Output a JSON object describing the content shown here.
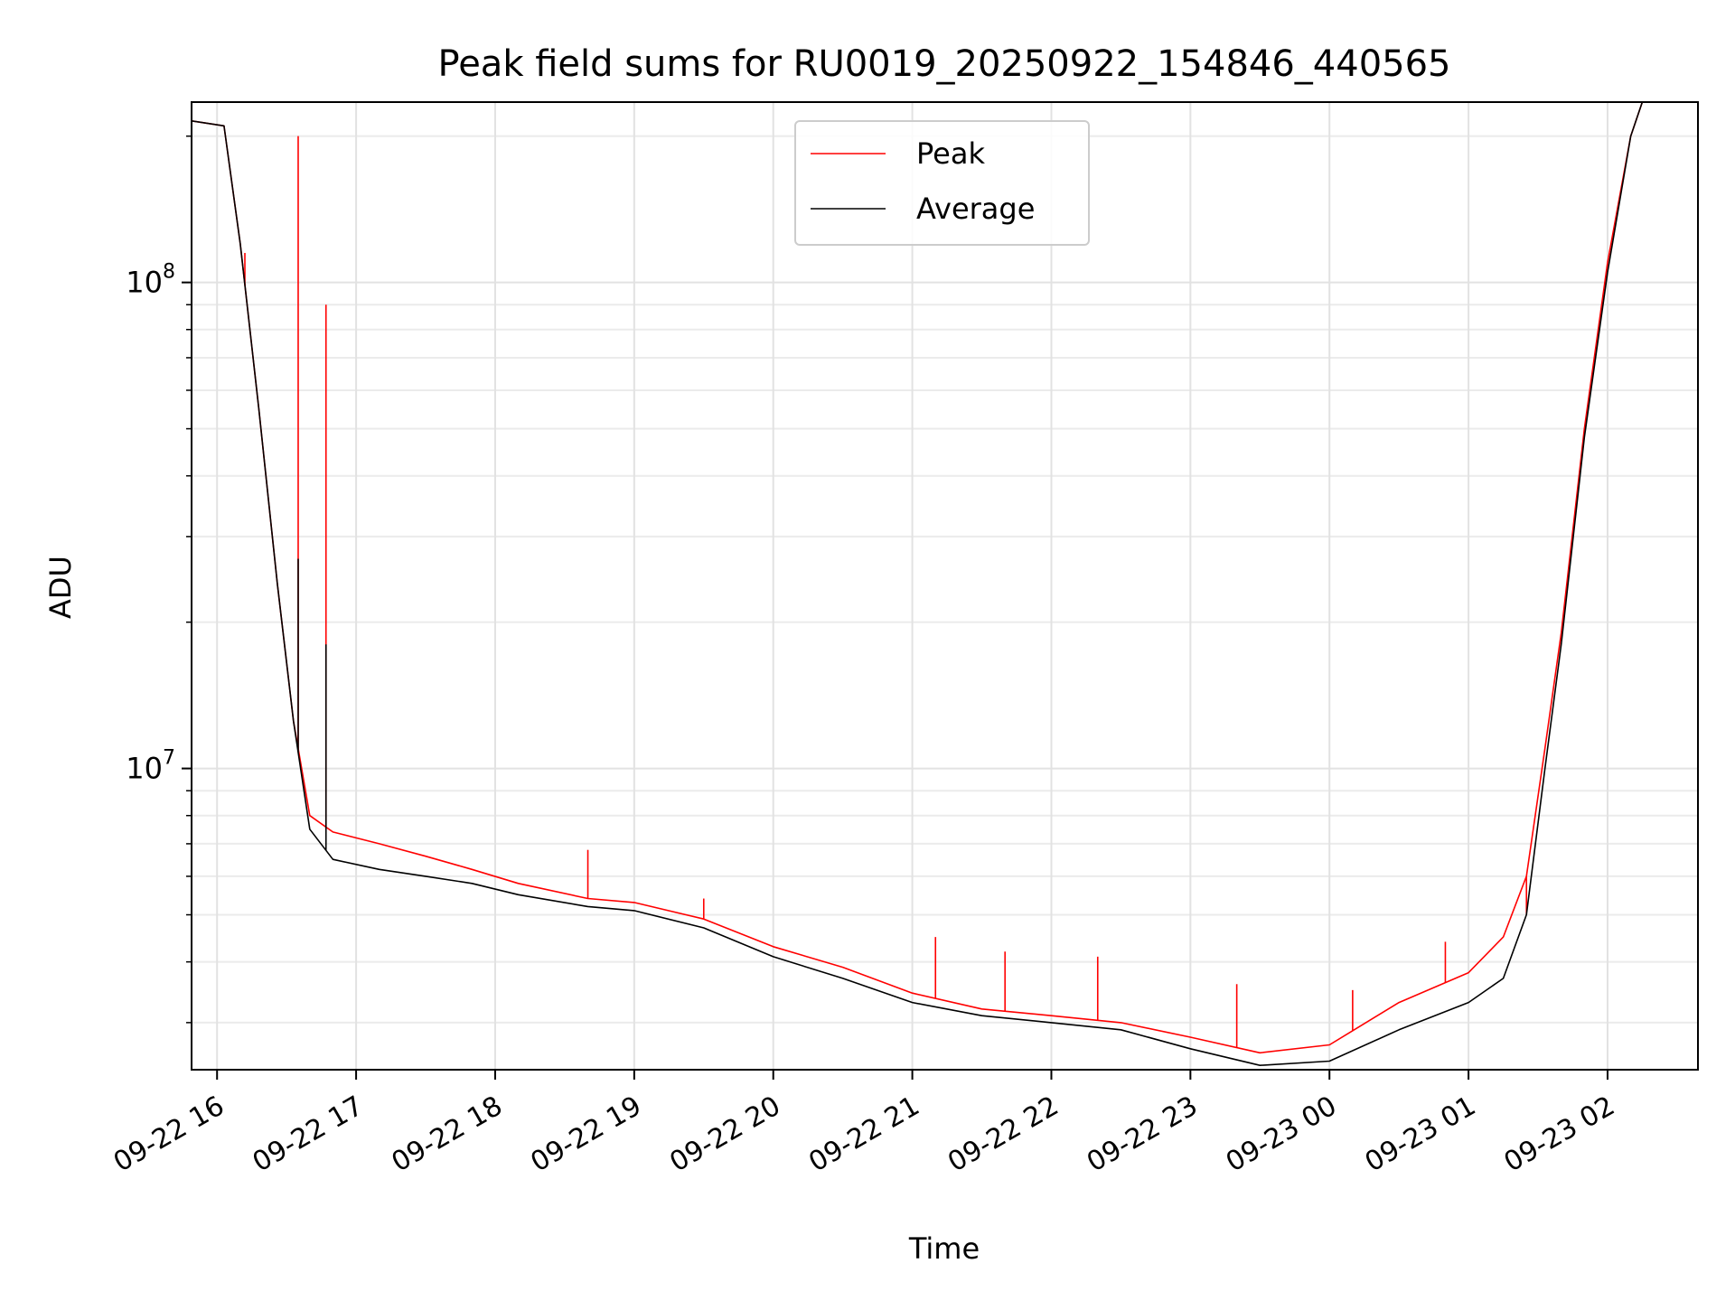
{
  "chart_data": {
    "type": "line",
    "title": "Peak field sums for RU0019_20250922_154846_440565",
    "xlabel": "Time",
    "ylabel": "ADU",
    "x_type": "time",
    "xlim": [
      "2025-09-22 15:49",
      "2025-09-23 02:39"
    ],
    "ylim": [
      2400000.0,
      235000000.0
    ],
    "y_scale": "log",
    "grid": true,
    "grid_minor": true,
    "legend": "top-center",
    "x_ticks": [
      {
        "t": "2025-09-22 16:00",
        "label": "09-22 16"
      },
      {
        "t": "2025-09-22 17:00",
        "label": "09-22 17"
      },
      {
        "t": "2025-09-22 18:00",
        "label": "09-22 18"
      },
      {
        "t": "2025-09-22 19:00",
        "label": "09-22 19"
      },
      {
        "t": "2025-09-22 20:00",
        "label": "09-22 20"
      },
      {
        "t": "2025-09-22 21:00",
        "label": "09-22 21"
      },
      {
        "t": "2025-09-22 22:00",
        "label": "09-22 22"
      },
      {
        "t": "2025-09-22 23:00",
        "label": "09-22 23"
      },
      {
        "t": "2025-09-23 00:00",
        "label": "09-23 00"
      },
      {
        "t": "2025-09-23 01:00",
        "label": "09-23 01"
      },
      {
        "t": "2025-09-23 02:00",
        "label": "09-23 02"
      }
    ],
    "y_ticks": [
      {
        "v": 10000000,
        "base": "10",
        "exp": "7"
      },
      {
        "v": 100000000,
        "base": "10",
        "exp": "8"
      }
    ],
    "series": [
      {
        "name": "Peak",
        "color": "#ff0000",
        "points": [
          [
            "2025-09-22 15:49",
            215000000.0
          ],
          [
            "2025-09-22 16:03",
            210000000.0
          ],
          [
            "2025-09-22 16:10",
            120000000.0
          ],
          [
            "2025-09-22 16:18",
            55000000.0
          ],
          [
            "2025-09-22 16:26",
            24000000.0
          ],
          [
            "2025-09-22 16:33",
            12500000.0
          ],
          [
            "2025-09-22 16:40",
            8000000.0
          ],
          [
            "2025-09-22 16:50",
            7400000.0
          ],
          [
            "2025-09-22 17:10",
            7000000.0
          ],
          [
            "2025-09-22 17:30",
            6600000.0
          ],
          [
            "2025-09-22 17:50",
            6200000.0
          ],
          [
            "2025-09-22 18:10",
            5800000.0
          ],
          [
            "2025-09-22 18:40",
            5400000.0
          ],
          [
            "2025-09-22 19:00",
            5300000.0
          ],
          [
            "2025-09-22 19:30",
            4900000.0
          ],
          [
            "2025-09-22 20:00",
            4300000.0
          ],
          [
            "2025-09-22 20:30",
            3900000.0
          ],
          [
            "2025-09-22 21:00",
            3450000.0
          ],
          [
            "2025-09-22 21:30",
            3200000.0
          ],
          [
            "2025-09-22 22:00",
            3100000.0
          ],
          [
            "2025-09-22 22:30",
            3000000.0
          ],
          [
            "2025-09-22 23:00",
            2800000.0
          ],
          [
            "2025-09-22 23:30",
            2600000.0
          ],
          [
            "2025-09-23 00:00",
            2700000.0
          ],
          [
            "2025-09-23 00:30",
            3300000.0
          ],
          [
            "2025-09-23 01:00",
            3800000.0
          ],
          [
            "2025-09-23 01:15",
            4500000.0
          ],
          [
            "2025-09-23 01:25",
            6000000.0
          ],
          [
            "2025-09-23 01:33",
            11000000.0
          ],
          [
            "2025-09-23 01:40",
            19000000.0
          ],
          [
            "2025-09-23 01:50",
            50000000.0
          ],
          [
            "2025-09-23 02:00",
            110000000.0
          ],
          [
            "2025-09-23 02:10",
            200000000.0
          ],
          [
            "2025-09-23 02:15",
            235000000.0
          ]
        ],
        "spikes": [
          [
            "2025-09-22 16:12",
            115000000.0
          ],
          [
            "2025-09-22 16:35",
            200000000.0
          ],
          [
            "2025-09-22 16:47",
            90000000.0
          ],
          [
            "2025-09-22 18:40",
            6800000.0
          ],
          [
            "2025-09-22 19:30",
            5400000.0
          ],
          [
            "2025-09-22 21:10",
            4500000.0
          ],
          [
            "2025-09-22 21:40",
            4200000.0
          ],
          [
            "2025-09-22 22:20",
            4100000.0
          ],
          [
            "2025-09-22 23:20",
            3600000.0
          ],
          [
            "2025-09-23 00:10",
            3500000.0
          ],
          [
            "2025-09-23 00:50",
            4400000.0
          ],
          [
            "2025-09-23 01:25",
            5000000.0
          ]
        ]
      },
      {
        "name": "Average",
        "color": "#000000",
        "points": [
          [
            "2025-09-22 15:49",
            215000000.0
          ],
          [
            "2025-09-22 16:03",
            210000000.0
          ],
          [
            "2025-09-22 16:10",
            120000000.0
          ],
          [
            "2025-09-22 16:18",
            55000000.0
          ],
          [
            "2025-09-22 16:26",
            24000000.0
          ],
          [
            "2025-09-22 16:33",
            12500000.0
          ],
          [
            "2025-09-22 16:40",
            7500000.0
          ],
          [
            "2025-09-22 16:50",
            6500000.0
          ],
          [
            "2025-09-22 17:10",
            6200000.0
          ],
          [
            "2025-09-22 17:30",
            6000000.0
          ],
          [
            "2025-09-22 17:50",
            5800000.0
          ],
          [
            "2025-09-22 18:10",
            5500000.0
          ],
          [
            "2025-09-22 18:40",
            5200000.0
          ],
          [
            "2025-09-22 19:00",
            5100000.0
          ],
          [
            "2025-09-22 19:30",
            4700000.0
          ],
          [
            "2025-09-22 20:00",
            4100000.0
          ],
          [
            "2025-09-22 20:30",
            3700000.0
          ],
          [
            "2025-09-22 21:00",
            3300000.0
          ],
          [
            "2025-09-22 21:30",
            3100000.0
          ],
          [
            "2025-09-22 22:00",
            3000000.0
          ],
          [
            "2025-09-22 22:30",
            2900000.0
          ],
          [
            "2025-09-22 23:00",
            2650000.0
          ],
          [
            "2025-09-22 23:30",
            2450000.0
          ],
          [
            "2025-09-23 00:00",
            2500000.0
          ],
          [
            "2025-09-23 00:30",
            2900000.0
          ],
          [
            "2025-09-23 01:00",
            3300000.0
          ],
          [
            "2025-09-23 01:15",
            3700000.0
          ],
          [
            "2025-09-23 01:25",
            5000000.0
          ],
          [
            "2025-09-23 01:33",
            10000000.0
          ],
          [
            "2025-09-23 01:40",
            18000000.0
          ],
          [
            "2025-09-23 01:50",
            48000000.0
          ],
          [
            "2025-09-23 02:00",
            105000000.0
          ],
          [
            "2025-09-23 02:10",
            200000000.0
          ],
          [
            "2025-09-23 02:15",
            235000000.0
          ]
        ],
        "spikes": [
          [
            "2025-09-22 16:35",
            27000000.0
          ],
          [
            "2025-09-22 16:47",
            18000000.0
          ]
        ]
      }
    ]
  }
}
